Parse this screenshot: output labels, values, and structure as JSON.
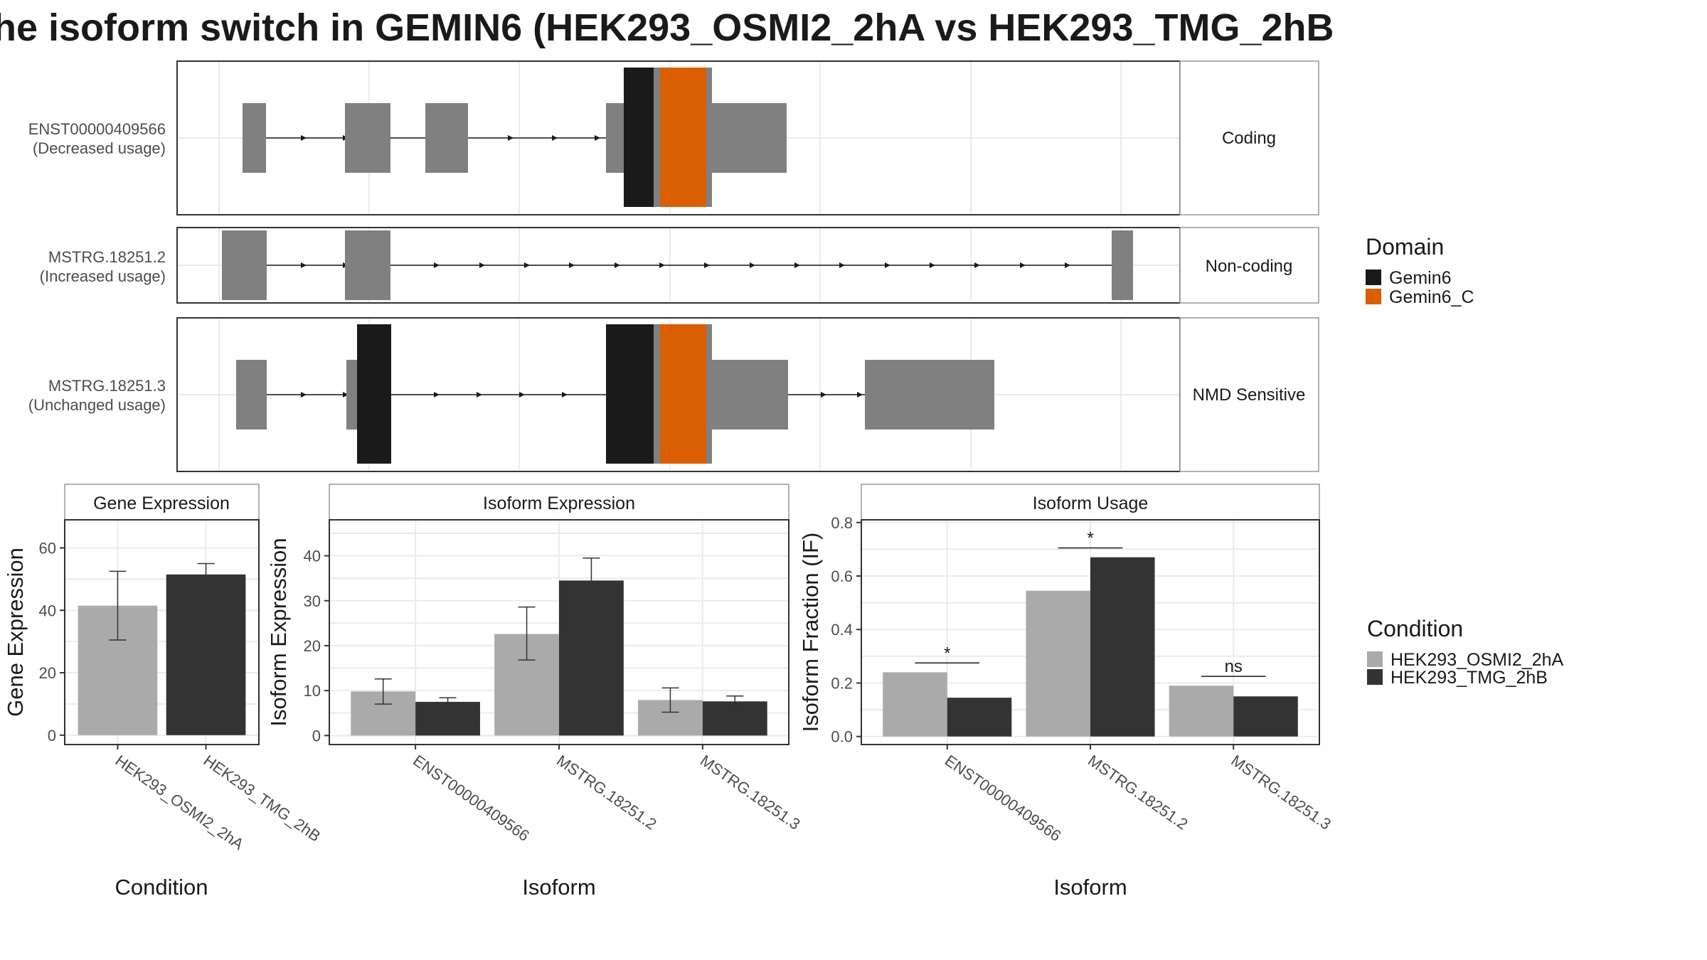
{
  "title": "he isoform switch in GEMIN6 (HEK293_OSMI2_2hA vs HEK293_TMG_2hB",
  "colors": {
    "exon": "#808080",
    "gemin6": "#1a1a1a",
    "gemin6_c": "#d95f02",
    "cond_a": "#aaaaaa",
    "cond_b": "#333333"
  },
  "transcripts": [
    {
      "id": "ENST00000409566",
      "usage": "(Decreased usage)",
      "type": "Coding"
    },
    {
      "id": "MSTRG.18251.2",
      "usage": "(Increased usage)",
      "type": "Non-coding"
    },
    {
      "id": "MSTRG.18251.3",
      "usage": "(Unchanged usage)",
      "type": "NMD Sensitive"
    }
  ],
  "domain_legend": {
    "title": "Domain",
    "items": [
      {
        "label": "Gemin6",
        "color": "#1a1a1a"
      },
      {
        "label": "Gemin6_C",
        "color": "#d95f02"
      }
    ]
  },
  "condition_legend": {
    "title": "Condition",
    "items": [
      {
        "label": "HEK293_OSMI2_2hA",
        "color": "#aaaaaa"
      },
      {
        "label": "HEK293_TMG_2hB",
        "color": "#333333"
      }
    ]
  },
  "chart_data": [
    {
      "type": "bar",
      "title": "Gene Expression",
      "xlabel": "Condition",
      "ylabel": "Gene Expression",
      "categories": [
        "HEK293_OSMI2_2hA",
        "HEK293_TMG_2hB"
      ],
      "values": [
        41.5,
        51.5
      ],
      "err_low": [
        30.5,
        48.0
      ],
      "err_high": [
        52.5,
        55.0
      ],
      "ylim": [
        -3,
        69
      ],
      "yticks": [
        0,
        20,
        40,
        60
      ]
    },
    {
      "type": "bar",
      "title": "Isoform Expression",
      "xlabel": "Isoform",
      "ylabel": "Isoform Expression",
      "categories": [
        "ENST00000409566",
        "MSTRG.18251.2",
        "MSTRG.18251.3"
      ],
      "series": [
        {
          "name": "HEK293_OSMI2_2hA",
          "values": [
            9.8,
            22.6,
            7.9
          ],
          "err_low": [
            7.0,
            16.8,
            5.2
          ],
          "err_high": [
            12.6,
            28.6,
            10.6
          ]
        },
        {
          "name": "HEK293_TMG_2hB",
          "values": [
            7.5,
            34.5,
            7.6
          ],
          "err_low": [
            6.6,
            29.6,
            6.4
          ],
          "err_high": [
            8.4,
            39.5,
            8.8
          ]
        }
      ],
      "ylim": [
        -2,
        48
      ],
      "yticks": [
        0,
        10,
        20,
        30,
        40
      ]
    },
    {
      "type": "bar",
      "title": "Isoform Usage",
      "xlabel": "Isoform",
      "ylabel": "Isoform Fraction (IF)",
      "categories": [
        "ENST00000409566",
        "MSTRG.18251.2",
        "MSTRG.18251.3"
      ],
      "series": [
        {
          "name": "HEK293_OSMI2_2hA",
          "values": [
            0.24,
            0.545,
            0.19
          ]
        },
        {
          "name": "HEK293_TMG_2hB",
          "values": [
            0.145,
            0.67,
            0.15
          ]
        }
      ],
      "significance": [
        "*",
        "*",
        "ns"
      ],
      "sig_y": [
        0.275,
        0.705,
        0.225
      ],
      "ylim": [
        -0.03,
        0.81
      ],
      "yticks": [
        0.0,
        0.2,
        0.4,
        0.6,
        0.8
      ],
      "ytick_labels": [
        "0.0",
        "0.2",
        "0.4",
        "0.6",
        "0.8"
      ]
    }
  ]
}
